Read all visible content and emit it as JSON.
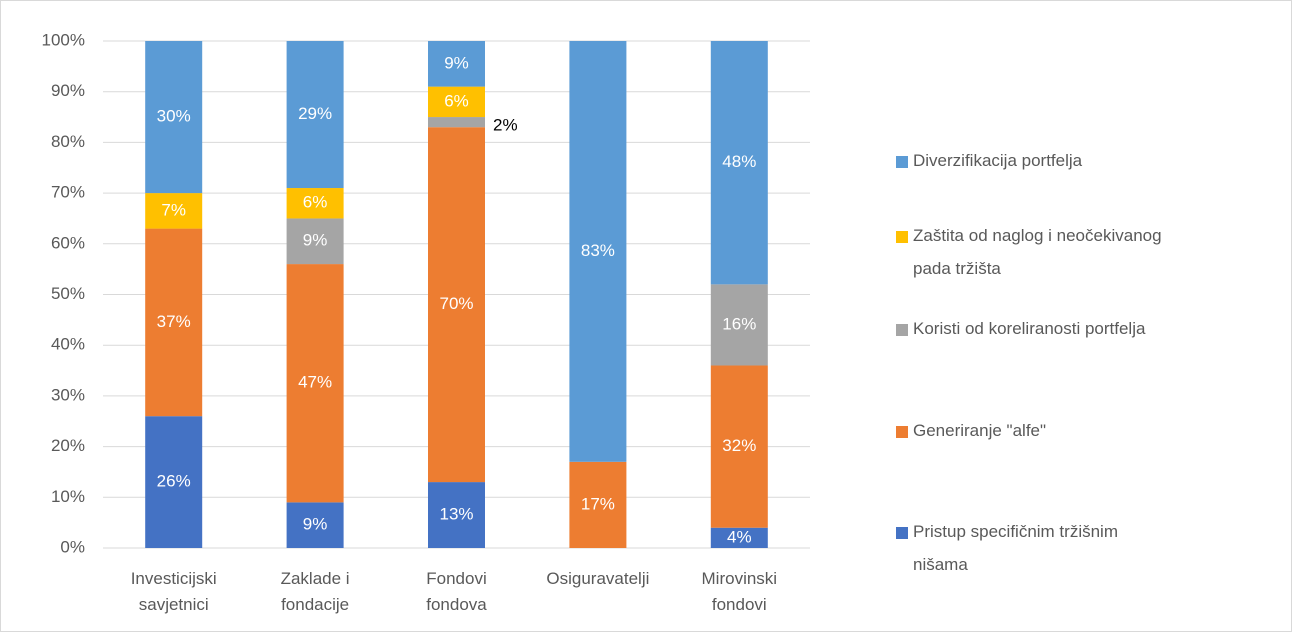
{
  "chart_data": {
    "type": "stacked_bar",
    "categories": [
      "Investicijski savjetnici",
      "Zaklade i fondacije",
      "Fondovi fondova",
      "Osiguravatelji",
      "Mirovinski fondovi"
    ],
    "series": [
      {
        "name": "Pristup specifičnim tržišnim nišama",
        "color": "#4472c4",
        "values": [
          26,
          9,
          13,
          null,
          4
        ],
        "value_labels": [
          "26%",
          "9%",
          "13%",
          null,
          "4%"
        ]
      },
      {
        "name": "Generiranje \"alfe\"",
        "color": "#ed7d31",
        "values": [
          37,
          47,
          70,
          17,
          32
        ],
        "value_labels": [
          "37%",
          "47%",
          "70%",
          "17%",
          "32%"
        ]
      },
      {
        "name": "Koristi od koreliranosti portfelja",
        "color": "#a5a5a5",
        "values": [
          null,
          9,
          2,
          null,
          16
        ],
        "value_labels": [
          null,
          "9%",
          "2%",
          null,
          "16%"
        ]
      },
      {
        "name": "Zaštita od naglog i neočekivanog pada tržišta",
        "color": "#ffc000",
        "values": [
          7,
          6,
          6,
          null,
          null
        ],
        "value_labels": [
          "7%",
          "6%",
          "6%",
          null,
          null
        ]
      },
      {
        "name": "Diverzifikacija portfelja",
        "color": "#5b9bd5",
        "values": [
          30,
          29,
          9,
          83,
          48
        ],
        "value_labels": [
          "30%",
          "29%",
          "9%",
          "83%",
          "48%"
        ]
      }
    ],
    "ylim": [
      0,
      100
    ],
    "yticks": [
      {
        "value": 0,
        "label": "0%"
      },
      {
        "value": 10,
        "label": "10%"
      },
      {
        "value": 20,
        "label": "20%"
      },
      {
        "value": 30,
        "label": "30%"
      },
      {
        "value": 40,
        "label": "40%"
      },
      {
        "value": 50,
        "label": "50%"
      },
      {
        "value": 60,
        "label": "60%"
      },
      {
        "value": 70,
        "label": "70%"
      },
      {
        "value": 80,
        "label": "80%"
      },
      {
        "value": 90,
        "label": "90%"
      },
      {
        "value": 100,
        "label": "100%"
      }
    ],
    "grid": true,
    "legend": "right"
  }
}
